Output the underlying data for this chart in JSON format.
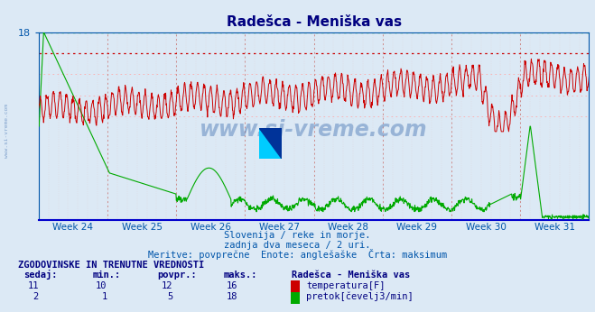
{
  "title": "Radešca - Meniška vas",
  "bg_color": "#dce9f5",
  "plot_bg_color": "#dce9f5",
  "title_color": "#000080",
  "axis_color": "#0055aa",
  "ymin": 0,
  "ymax": 18,
  "week_labels": [
    "Week 24",
    "Week 25",
    "Week 26",
    "Week 27",
    "Week 28",
    "Week 29",
    "Week 30",
    "Week 31"
  ],
  "temp_color": "#cc0000",
  "flow_color": "#00aa00",
  "hline_green": "#00cc00",
  "hline_red_max": "#cc0000",
  "hline_pink": "#ffaaaa",
  "vgrid_major": "#cc8888",
  "vgrid_minor": "#ddbbbb",
  "subtitle1": "Slovenija / reke in morje.",
  "subtitle2": "zadnja dva meseca / 2 uri.",
  "subtitle3": "Meritve: povprečne  Enote: anglešaške  Črta: maksimum",
  "table_header": "ZGODOVINSKE IN TRENUTNE VREDNOSTI",
  "col_sedaj": "sedaj:",
  "col_min": "min.:",
  "col_povpr": "povpr.:",
  "col_maks": "maks.:",
  "col_station": "Radešca - Meniška vas",
  "temp_sedaj": 11,
  "temp_min": 10,
  "temp_povpr": 12,
  "temp_maks": 16,
  "temp_label": "temperatura[F]",
  "flow_sedaj": 2,
  "flow_min": 1,
  "flow_povpr": 5,
  "flow_maks": 18,
  "flow_label": "pretok[čevelj3/min]",
  "watermark": "www.si-vreme.com",
  "watermark_color": "#3366aa",
  "side_text": "www.si-vreme.com"
}
